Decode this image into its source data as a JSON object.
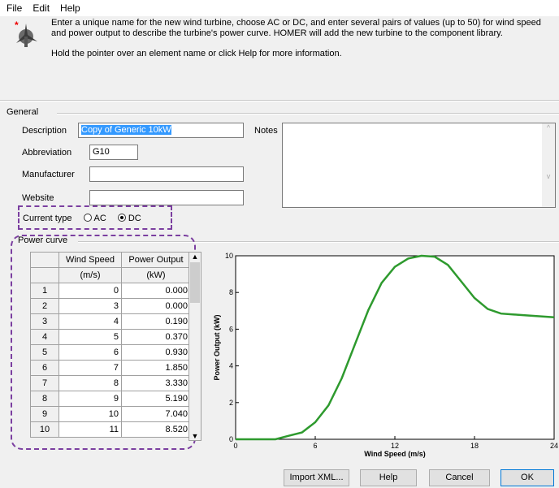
{
  "menu": [
    "File",
    "Edit",
    "Help"
  ],
  "instructions": [
    "Enter a unique name for the new wind turbine, choose AC or DC, and enter several pairs of values (up to 50) for wind speed and power output to describe the turbine's power curve. HOMER will add the new turbine to the component library.",
    "Hold the pointer over an element name or click Help for more information."
  ],
  "general": {
    "title": "General",
    "fields": [
      {
        "label": "Description",
        "value": "Copy of Generic 10kW"
      },
      {
        "label": "Abbreviation",
        "value": "G10"
      },
      {
        "label": "Manufacturer"
      },
      {
        "label": "Website"
      }
    ],
    "notes_label": "Notes"
  },
  "current_type": {
    "label": "Current type",
    "options": [
      "AC",
      "DC"
    ],
    "selected": "DC"
  },
  "power_curve": {
    "title": "Power curve",
    "columns": [
      [
        "Wind Speed",
        "(m/s)"
      ],
      [
        "Power Output",
        "(kW)"
      ]
    ],
    "rows": [
      [
        "1",
        "0",
        "0.000"
      ],
      [
        "2",
        "3",
        "0.000"
      ],
      [
        "3",
        "4",
        "0.190"
      ],
      [
        "4",
        "5",
        "0.370"
      ],
      [
        "5",
        "6",
        "0.930"
      ],
      [
        "6",
        "7",
        "1.850"
      ],
      [
        "7",
        "8",
        "3.330"
      ],
      [
        "8",
        "9",
        "5.190"
      ],
      [
        "9",
        "10",
        "7.040"
      ],
      [
        "10",
        "11",
        "8.520"
      ]
    ]
  },
  "chart_data": {
    "type": "line",
    "xlabel": "Wind Speed (m/s)",
    "ylabel": "Power Output (kW)",
    "x": [
      0,
      3,
      4,
      5,
      6,
      7,
      8,
      9,
      10,
      11,
      12,
      13,
      14,
      15,
      16,
      17,
      18,
      19,
      20,
      21,
      22,
      23,
      24
    ],
    "values": [
      0,
      0,
      0.19,
      0.37,
      0.93,
      1.85,
      3.33,
      5.19,
      7.04,
      8.52,
      9.4,
      9.85,
      10,
      9.95,
      9.5,
      8.6,
      7.7,
      7.1,
      6.85,
      6.8,
      6.75,
      6.7,
      6.65
    ],
    "color": "#2e9a2e",
    "xlim": [
      0,
      24
    ],
    "ylim": [
      0,
      10
    ],
    "xticks": [
      0,
      6,
      12,
      18,
      24
    ],
    "yticks": [
      0,
      2,
      4,
      6,
      8,
      10
    ]
  },
  "buttons": [
    "Import XML...",
    "Help",
    "Cancel",
    "OK"
  ]
}
